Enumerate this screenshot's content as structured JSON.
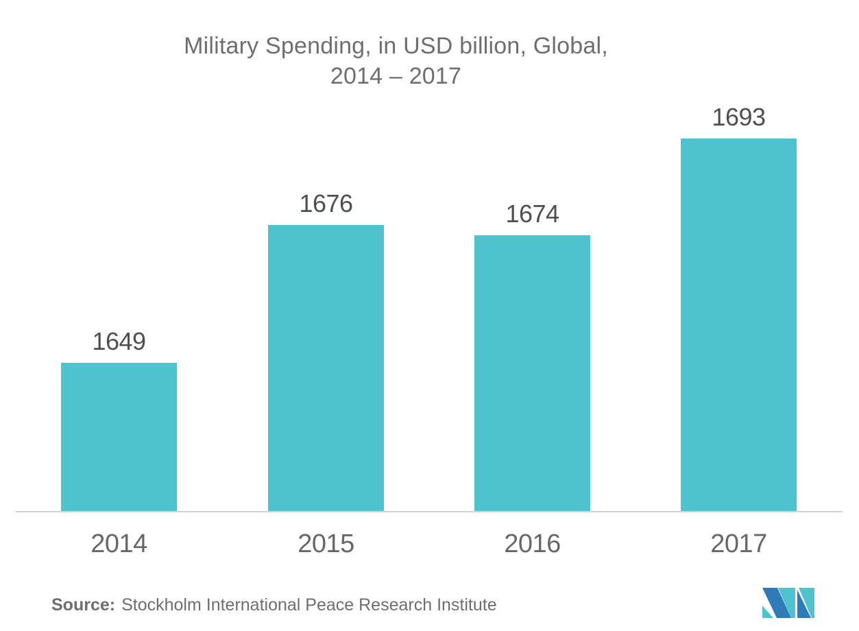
{
  "chart_data": {
    "type": "bar",
    "title": "Military Spending, in USD billion, Global, 2014 – 2017",
    "title_line1": "Military Spending, in USD billion, Global,",
    "title_line2": "2014 – 2017",
    "categories": [
      "2014",
      "2015",
      "2016",
      "2017"
    ],
    "values": [
      1649,
      1676,
      1674,
      1693
    ],
    "xlabel": "",
    "ylabel": "",
    "ylim": [
      1620,
      1693
    ],
    "grid": false,
    "legend": "none",
    "value_labels": "above-bars",
    "bar_color": "#4FC3CD",
    "value_label_color": "#4D4E50",
    "category_label_color": "#66676A",
    "title_color": "#6D6E71",
    "axis_line_color": "#D2D3D5"
  },
  "source": {
    "prefix": "Source:",
    "text": "Stockholm International Peace Research Institute",
    "color": "#6D6E71"
  },
  "logo": {
    "name": "mordor-intelligence-logo",
    "blue": "#2E7CB7",
    "teal": "#4FC3CD"
  }
}
